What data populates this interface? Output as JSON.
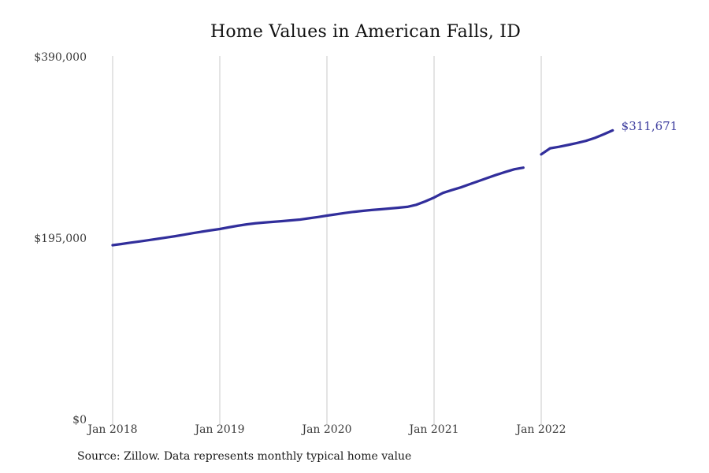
{
  "page": {
    "title": "Home Values in American Falls, ID",
    "source_note": "Source: Zillow. Data represents monthly typical home value"
  },
  "chart_data": {
    "type": "line",
    "title": "Home Values in American Falls, ID",
    "series_name": "Monthly typical home value",
    "x_unit": "month",
    "x": [
      "2018-01",
      "2018-02",
      "2018-03",
      "2018-04",
      "2018-05",
      "2018-06",
      "2018-07",
      "2018-08",
      "2018-09",
      "2018-10",
      "2018-11",
      "2018-12",
      "2019-01",
      "2019-02",
      "2019-03",
      "2019-04",
      "2019-05",
      "2019-06",
      "2019-07",
      "2019-08",
      "2019-09",
      "2019-10",
      "2019-11",
      "2019-12",
      "2020-01",
      "2020-02",
      "2020-03",
      "2020-04",
      "2020-05",
      "2020-06",
      "2020-07",
      "2020-08",
      "2020-09",
      "2020-10",
      "2020-11",
      "2020-12",
      "2021-01",
      "2021-02",
      "2021-03",
      "2021-04",
      "2021-05",
      "2021-06",
      "2021-07",
      "2021-08",
      "2021-09",
      "2021-10",
      "2021-11",
      "2021-12",
      "2022-01",
      "2022-02",
      "2022-03",
      "2022-04",
      "2022-05",
      "2022-06",
      "2022-07",
      "2022-08",
      "2022-09"
    ],
    "values": [
      188200,
      189500,
      190900,
      192200,
      193600,
      195000,
      196400,
      197900,
      199500,
      201200,
      202700,
      204200,
      205600,
      207400,
      209100,
      210600,
      211700,
      212600,
      213300,
      214100,
      214900,
      215800,
      217100,
      218500,
      220000,
      221400,
      222800,
      224100,
      225100,
      226000,
      226800,
      227600,
      228500,
      229400,
      231600,
      235300,
      239400,
      244400,
      247500,
      250400,
      253800,
      257200,
      260600,
      263900,
      267000,
      269900,
      271600,
      null,
      285900,
      292400,
      294000,
      296000,
      298100,
      300400,
      303500,
      307400,
      311671
    ],
    "end_label": "$311,671",
    "ylim": [
      0,
      390000
    ],
    "yticks": [
      {
        "value": 390000,
        "label": "$390,000"
      },
      {
        "value": 195000,
        "label": "$195,000"
      },
      {
        "value": 0,
        "label": "$0"
      }
    ],
    "xticks": [
      {
        "month_index": 0,
        "label": "Jan 2018"
      },
      {
        "month_index": 12,
        "label": "Jan 2019"
      },
      {
        "month_index": 24,
        "label": "Jan 2020"
      },
      {
        "month_index": 36,
        "label": "Jan 2021"
      },
      {
        "month_index": 48,
        "label": "Jan 2022"
      }
    ],
    "grid": "vertical-only",
    "legend": "none",
    "colors": {
      "line": "#312e9b",
      "end_label": "#3d3d9e",
      "gridline": "#c9c9c9",
      "tick_text": "#3a3a3a",
      "title_text": "#111111",
      "background": "#ffffff"
    }
  }
}
